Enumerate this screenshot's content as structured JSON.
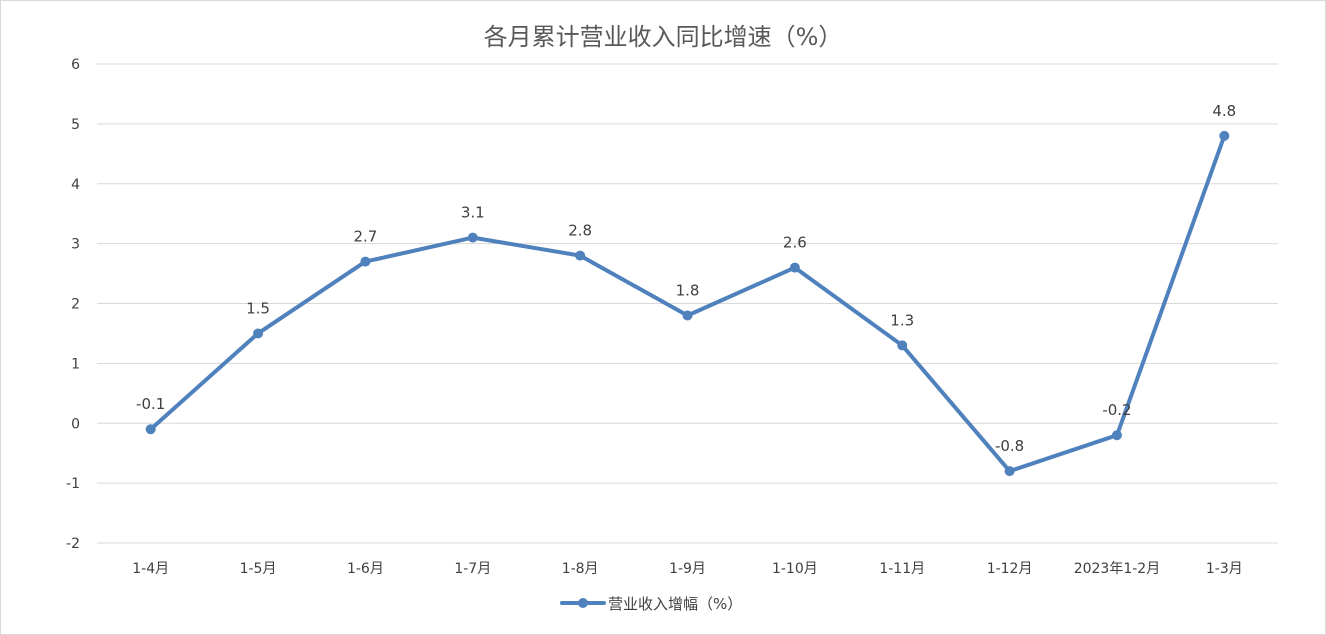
{
  "chart_data": {
    "type": "line",
    "title": "各月累计营业收入同比增速（%）",
    "categories": [
      "1-4月",
      "1-5月",
      "1-6月",
      "1-7月",
      "1-8月",
      "1-9月",
      "1-10月",
      "1-11月",
      "1-12月",
      "2023年1-2月",
      "1-3月"
    ],
    "series": [
      {
        "name": "营业收入增幅（%）",
        "values": [
          -0.1,
          1.5,
          2.7,
          3.1,
          2.8,
          1.8,
          2.6,
          1.3,
          -0.8,
          -0.2,
          4.8
        ],
        "data_labels": [
          "-0.1",
          "1.5",
          "2.7",
          "3.1",
          "2.8",
          "1.8",
          "2.6",
          "1.3",
          "-0.8",
          "-0.2",
          "4.8"
        ],
        "color": "#4f81bd"
      }
    ],
    "ylim": [
      -2,
      6
    ],
    "yticks": [
      -2,
      -1,
      0,
      1,
      2,
      3,
      4,
      5,
      6
    ],
    "ytick_labels": [
      "-2",
      "-1",
      "0",
      "1",
      "2",
      "3",
      "4",
      "5",
      "6"
    ],
    "xlabel": "",
    "ylabel": "",
    "grid": true,
    "legend_position": "bottom"
  }
}
